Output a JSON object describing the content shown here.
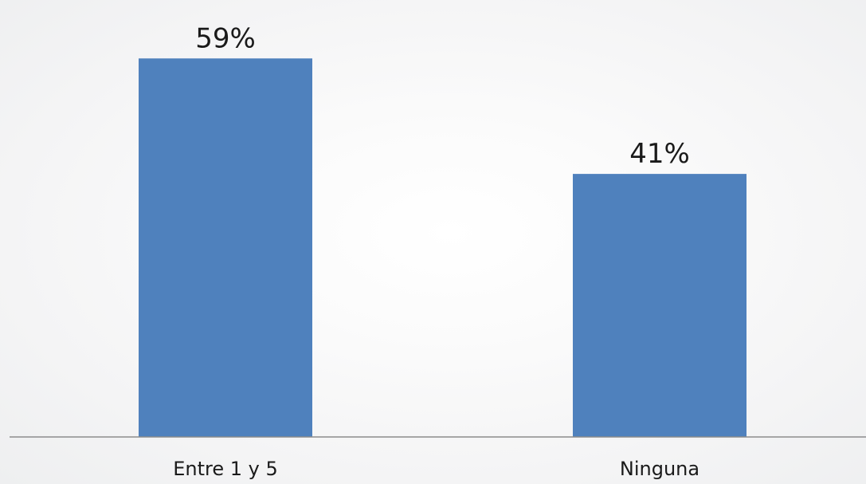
{
  "chart_data": {
    "type": "bar",
    "categories": [
      "Entre 1 y 5",
      "Ninguna"
    ],
    "values": [
      59,
      41
    ],
    "data_labels": [
      "59%",
      "41%"
    ],
    "ylim": [
      0,
      65
    ],
    "grid": false,
    "legend": "none",
    "colors": {
      "bar": "#4f81bd",
      "axis": "#8c8c8c",
      "text": "#1a1a1a"
    }
  }
}
